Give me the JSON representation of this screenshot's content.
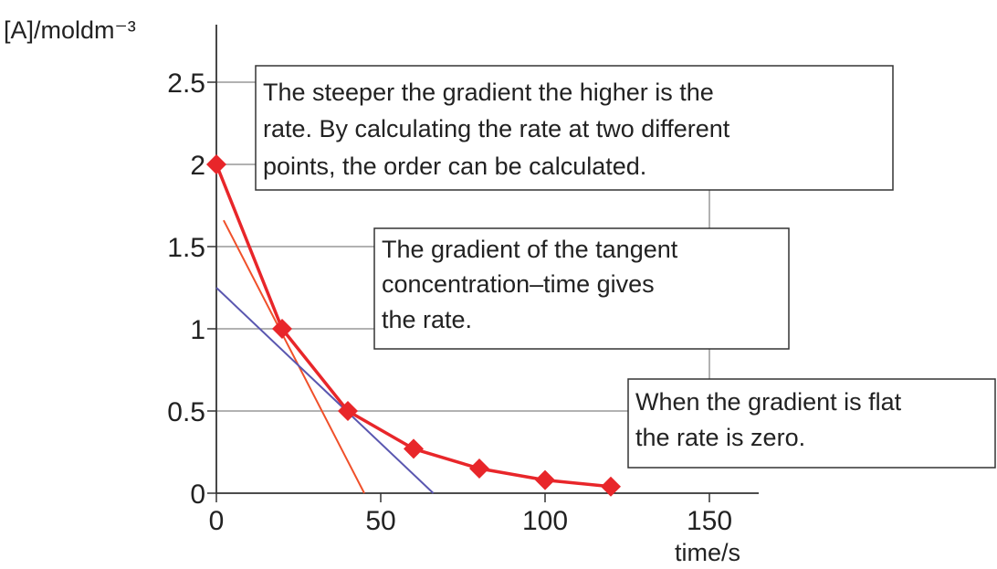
{
  "chart_data": {
    "type": "line",
    "ylabel": "[A]/moldm⁻³",
    "xlabel": "time/s",
    "x": [
      0,
      20,
      40,
      60,
      80,
      100,
      120
    ],
    "series": [
      {
        "color": "#e8262a",
        "values": [
          2,
          1,
          0.5,
          0.27,
          0.15,
          0.08,
          0.04
        ]
      }
    ],
    "tangents": [
      {
        "color": "#f0502a",
        "x": [
          2.2,
          45
        ],
        "values": [
          1.66,
          0
        ]
      },
      {
        "color": "#5a57b0",
        "x": [
          0,
          66
        ],
        "values": [
          1.25,
          0
        ]
      }
    ],
    "xlim": [
      0,
      165
    ],
    "ylim": [
      0,
      2.85
    ],
    "xticks": [
      0,
      50,
      100,
      150
    ],
    "yticks": [
      0,
      0.5,
      1,
      1.5,
      2,
      2.5
    ],
    "annotations": [
      {
        "text": [
          "The steeper the gradient the higher is the",
          "rate. By calculating the rate at two different",
          "points, the order can be calculated."
        ]
      },
      {
        "text": [
          "The gradient of the tangent",
          "concentration–time gives",
          "the rate."
        ]
      },
      {
        "text": [
          "When the gradient is flat",
          "the rate is zero."
        ]
      }
    ]
  }
}
